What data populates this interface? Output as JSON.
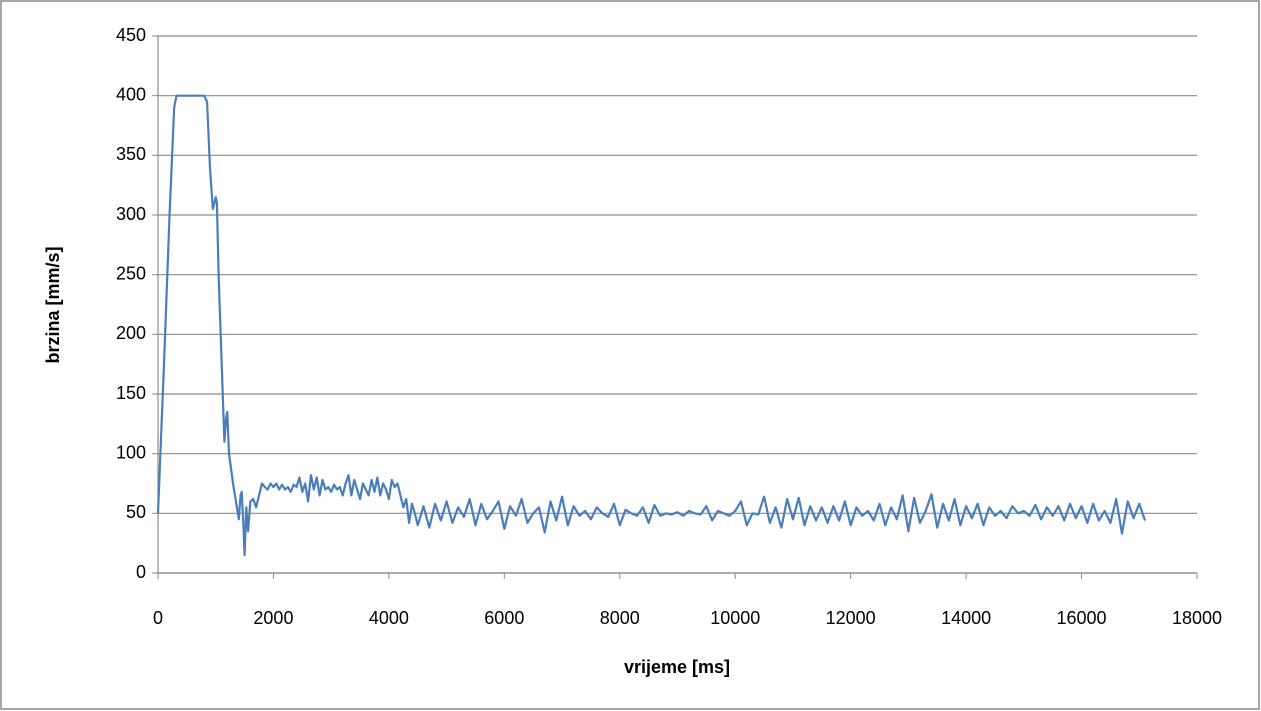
{
  "chart_data": {
    "type": "line",
    "x_label": "vrijeme [ms]",
    "y_label": "brzina [mm/s]",
    "xlim": [
      0,
      18000
    ],
    "xticks": [
      0,
      2000,
      4000,
      6000,
      8000,
      10000,
      12000,
      14000,
      16000,
      18000
    ],
    "ylim": [
      0,
      450
    ],
    "yticks": [
      0,
      50,
      100,
      150,
      200,
      250,
      300,
      350,
      400,
      450
    ],
    "grid": true,
    "series": [
      {
        "color": "#4a7ebb",
        "x": [
          0,
          100,
          200,
          280,
          320,
          800,
          850,
          900,
          950,
          1000,
          1020,
          1050,
          1100,
          1150,
          1180,
          1200,
          1230,
          1300,
          1350,
          1400,
          1430,
          1450,
          1480,
          1500,
          1530,
          1560,
          1600,
          1650,
          1700,
          1750,
          1800,
          1850,
          1900,
          1950,
          2000,
          2050,
          2100,
          2150,
          2200,
          2250,
          2300,
          2350,
          2400,
          2450,
          2500,
          2550,
          2600,
          2650,
          2700,
          2750,
          2800,
          2850,
          2900,
          2950,
          3000,
          3050,
          3100,
          3150,
          3200,
          3250,
          3300,
          3350,
          3400,
          3450,
          3500,
          3550,
          3600,
          3650,
          3700,
          3750,
          3800,
          3850,
          3900,
          3950,
          4000,
          4050,
          4100,
          4150,
          4200,
          4250,
          4300,
          4350,
          4400,
          4450,
          4500,
          4600,
          4700,
          4800,
          4900,
          5000,
          5100,
          5200,
          5300,
          5400,
          5500,
          5600,
          5700,
          5800,
          5900,
          6000,
          6100,
          6200,
          6300,
          6400,
          6500,
          6600,
          6700,
          6800,
          6900,
          7000,
          7100,
          7200,
          7300,
          7400,
          7500,
          7600,
          7700,
          7800,
          7900,
          8000,
          8100,
          8200,
          8300,
          8400,
          8500,
          8600,
          8700,
          8800,
          8900,
          9000,
          9100,
          9200,
          9300,
          9400,
          9500,
          9600,
          9700,
          9800,
          9900,
          10000,
          10100,
          10200,
          10300,
          10400,
          10500,
          10600,
          10700,
          10800,
          10900,
          11000,
          11100,
          11200,
          11300,
          11400,
          11500,
          11600,
          11700,
          11800,
          11900,
          12000,
          12100,
          12200,
          12300,
          12400,
          12500,
          12600,
          12700,
          12800,
          12900,
          13000,
          13100,
          13200,
          13300,
          13400,
          13500,
          13600,
          13700,
          13800,
          13900,
          14000,
          14100,
          14200,
          14300,
          14400,
          14500,
          14600,
          14700,
          14800,
          14900,
          15000,
          15100,
          15200,
          15300,
          15400,
          15500,
          15600,
          15700,
          15800,
          15900,
          16000,
          16100,
          16200,
          16300,
          16400,
          16500,
          16600,
          16700,
          16800,
          16900,
          17000,
          17100
        ],
        "values": [
          50,
          170,
          300,
          390,
          400,
          400,
          395,
          340,
          305,
          315,
          310,
          250,
          180,
          110,
          130,
          135,
          100,
          75,
          60,
          45,
          65,
          68,
          40,
          15,
          55,
          35,
          60,
          62,
          55,
          65,
          75,
          72,
          70,
          75,
          72,
          75,
          70,
          74,
          70,
          72,
          68,
          74,
          72,
          80,
          68,
          75,
          60,
          82,
          70,
          80,
          65,
          78,
          70,
          72,
          68,
          74,
          70,
          72,
          65,
          75,
          82,
          65,
          78,
          70,
          62,
          75,
          70,
          65,
          78,
          68,
          80,
          65,
          75,
          70,
          62,
          78,
          72,
          75,
          65,
          55,
          62,
          42,
          58,
          50,
          40,
          56,
          38,
          58,
          44,
          60,
          42,
          55,
          47,
          62,
          40,
          58,
          45,
          52,
          60,
          37,
          56,
          48,
          62,
          42,
          50,
          55,
          34,
          60,
          44,
          64,
          40,
          56,
          48,
          52,
          45,
          55,
          50,
          47,
          58,
          40,
          53,
          50,
          48,
          55,
          42,
          57,
          48,
          50,
          49,
          51,
          48,
          52,
          50,
          49,
          56,
          44,
          52,
          50,
          48,
          52,
          60,
          40,
          50,
          49,
          64,
          42,
          55,
          38,
          62,
          45,
          63,
          40,
          56,
          44,
          55,
          42,
          56,
          44,
          60,
          40,
          55,
          48,
          52,
          44,
          58,
          40,
          55,
          45,
          65,
          35,
          63,
          42,
          52,
          66,
          38,
          58,
          44,
          62,
          40,
          56,
          46,
          58,
          40,
          55,
          48,
          52,
          46,
          56,
          50,
          52,
          48,
          57,
          45,
          55,
          48,
          56,
          44,
          58,
          46,
          56,
          42,
          58,
          44,
          52,
          42,
          62,
          33,
          60,
          46,
          58,
          44
        ]
      }
    ]
  }
}
